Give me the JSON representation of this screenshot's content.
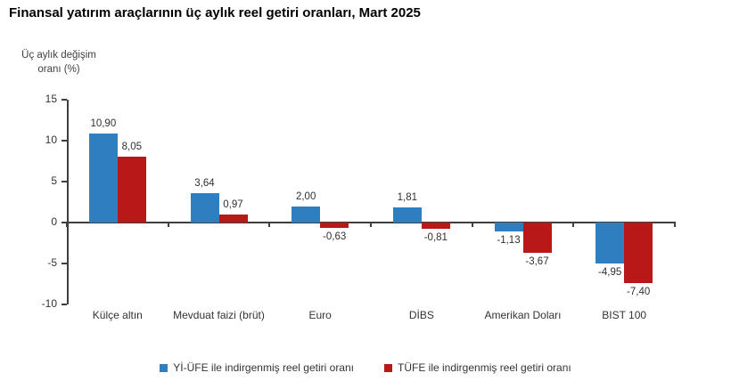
{
  "title": "Finansal yatırım araçlarının üç aylık reel getiri oranları, Mart 2025",
  "axis": {
    "ylabel_line1": "Üç aylık değişim",
    "ylabel_line2": "oranı (%)"
  },
  "chart_data": {
    "type": "bar",
    "title": "Finansal yatırım araçlarının üç aylık reel getiri oranları, Mart 2025",
    "ylabel": "Üç aylık değişim oranı (%)",
    "xlabel": "",
    "categories": [
      "Külçe altın",
      "Mevduat faizi (brüt)",
      "Euro",
      "DİBS",
      "Amerikan Doları",
      "BIST 100"
    ],
    "series": [
      {
        "name": "Yİ-ÜFE ile indirgenmiş reel getiri oranı",
        "color": "#2E7EC0",
        "values": [
          10.9,
          3.64,
          2.0,
          1.81,
          -1.13,
          -4.95
        ]
      },
      {
        "name": "TÜFE ile indirgenmiş reel getiri oranı",
        "color": "#B81918",
        "values": [
          8.05,
          0.97,
          -0.63,
          -0.81,
          -3.67,
          -7.4
        ]
      }
    ],
    "ylim": [
      -10,
      15
    ],
    "yticks": [
      15,
      10,
      5,
      0,
      -5,
      -10
    ],
    "grid": false,
    "legend_position": "bottom",
    "decimal_separator": ","
  }
}
